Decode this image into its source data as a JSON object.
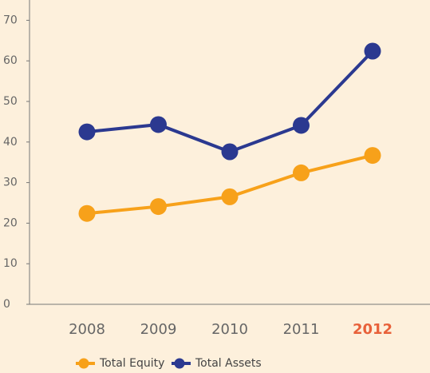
{
  "chart_data": {
    "type": "line",
    "categories": [
      "2008",
      "2009",
      "2010",
      "2011",
      "2012"
    ],
    "series": [
      {
        "name": "Total Equity",
        "color": "#f7a11a",
        "values": [
          22.4,
          24.1,
          26.5,
          32.4,
          36.7
        ]
      },
      {
        "name": "Total Assets",
        "color": "#2b3990",
        "values": [
          42.5,
          44.3,
          37.6,
          44.1,
          62.4
        ]
      }
    ],
    "ylim": [
      0,
      75
    ],
    "yticks": [
      0,
      10,
      20,
      30,
      40,
      50,
      60,
      70
    ],
    "highlight_category": "2012",
    "highlight_color": "#e8613a",
    "legend": "bottom"
  }
}
